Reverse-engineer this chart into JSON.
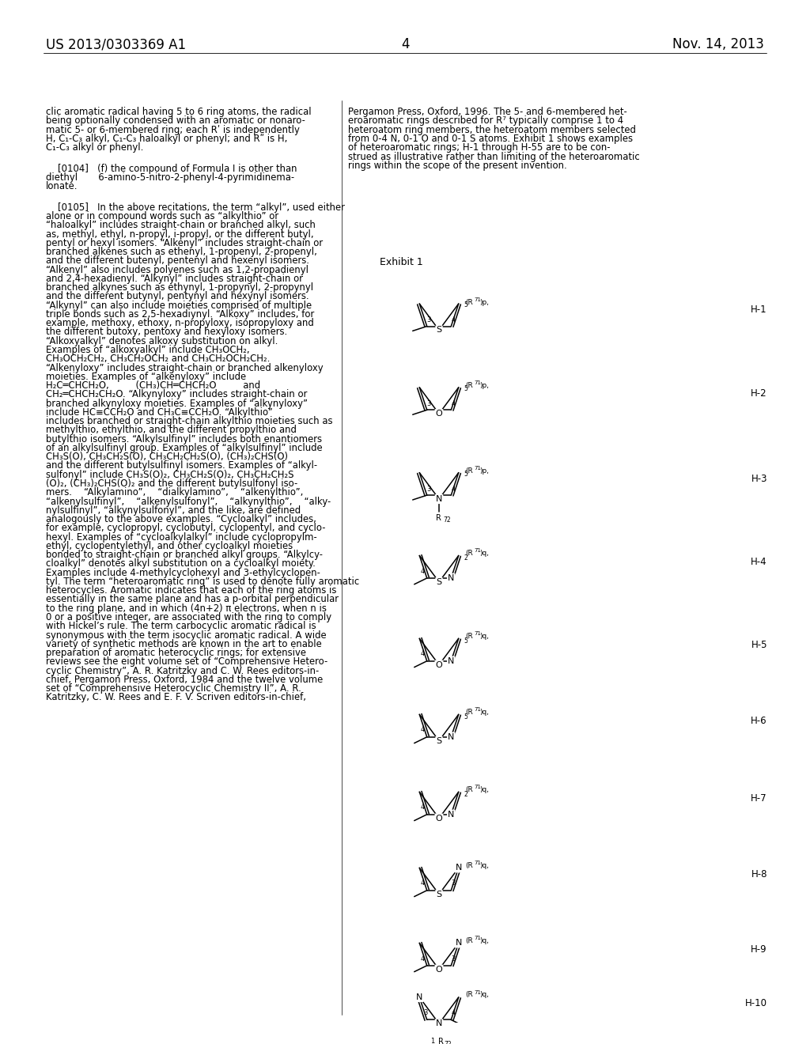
{
  "bg": "#ffffff",
  "header_left": "US 2013/0303369 A1",
  "header_right": "Nov. 14, 2013",
  "page_num": "4",
  "left_lines": [
    "clic aromatic radical having 5 to 6 ring atoms, the radical",
    "being optionally condensed with an aromatic or nonaro-",
    "matic 5- or 6-membered ring; each Rʹ is independently",
    "H, C₁-C₃ alkyl, C₁-C₃ haloalkyl or phenyl; and Rʺ is H,",
    "C₁-C₃ alkyl or phenyl.",
    "",
    "    [0104]   (f) the compound of Formula I is other than",
    "diethyl       6-amino-5-nitro-2-phenyl-4-pyrimidinema-",
    "lonate.",
    "",
    "    [0105]   In the above recitations, the term “alkyl”, used either",
    "alone or in compound words such as “alkylthio” or",
    "“haloalkyl” includes straight-chain or branched alkyl, such",
    "as, methyl, ethyl, n-propyl, i-propyl, or the different butyl,",
    "pentyl or hexyl isomers. “Alkenyl” includes straight-chain or",
    "branched alkenes such as ethenyl, 1-propenyl, 2-propenyl,",
    "and the different butenyl, pentenyl and hexenyl isomers.",
    "“Alkenyl” also includes polyenes such as 1,2-propadienyl",
    "and 2,4-hexadienyl. “Alkynyl” includes straight-chain or",
    "branched alkynes such as ethynyl, 1-propynyl, 2-propynyl",
    "and the different butynyl, pentynyl and hexynyl isomers.",
    "“Alkynyl” can also include moieties comprised of multiple",
    "triple bonds such as 2,5-hexadiynyl. “Alkoxy” includes, for",
    "example, methoxy, ethoxy, n-propyloxy, isopropyloxy and",
    "the different butoxy, pentoxy and hexyloxy isomers.",
    "“Alkoxyalkyl” denotes alkoxy substitution on alkyl.",
    "Examples of “alkoxyalkyl” include CH₃OCH₂,",
    "CH₃OCH₂CH₂, CH₃CH₂OCH₂ and CH₃CH₂OCH₂CH₂.",
    "“Alkenyloxy” includes straight-chain or branched alkenyloxy",
    "moieties. Examples of “alkenyloxy” include",
    "H₂C═CHCH₂O,         (CH₃)CH═CHCH₂O         and",
    "CH₂═CHCH₂CH₂O. “Alkynyloxy” includes straight-chain or",
    "branched alkynyloxy moieties. Examples of “alkynyloxy”",
    "include HC≡CCH₂O and CH₃C≡CCH₂O. “Alkylthio”",
    "includes branched or straight-chain alkylthio moieties such as",
    "methylthio, ethylthio, and the different propylthio and",
    "butylthio isomers. “Alkylsulfinyl” includes both enantiomers",
    "of an alkylsulfinyl group. Examples of “alkylsulfinyl” include",
    "CH₃S(O), CH₃CH₂S(O), CH₃CH₂CH₂S(O), (CH₃)₂CHS(O)",
    "and the different butylsulfinyl isomers. Examples of “alkyl-",
    "sulfonyl” include CH₃S(O)₂, CH₃CH₂S(O)₂, CH₃CH₂CH₂S",
    "(O)₂, (CH₃)₂CHS(O)₂ and the different butylsulfonyl iso-",
    "mers.    “Alkylamino”,    “dialkylamino”,    “alkenylthio”,",
    "“alkenylsulfinyl”,    “alkenylsulfonyl”,    “alkynylthio”,    “alky-",
    "nylsulfinyl”, “alkynylsulfonyl”, and the like, are defined",
    "analogously to the above examples. “Cycloalkyl” includes,",
    "for example, cyclopropyl, cyclobutyl, cyclopentyl, and cyclo-",
    "hexyl. Examples of “cycloalkylalkyl” include cyclopropylm-",
    "ethyl, cyclopentylethyl, and other cycloalkyl moieties",
    "bonded to straight-chain or branched alkyl groups. “Alkylcy-",
    "cloalkyl” denotes alkyl substitution on a cycloalkyl moiety.",
    "Examples include 4-methylcyclohexyl and 3-ethylcyclopen-",
    "tyl. The term “heteroaromatic ring” is used to denote fully aromatic",
    "heterocycles. Aromatic indicates that each of the ring atoms is",
    "essentially in the same plane and has a p-orbital perpendicular",
    "to the ring plane, and in which (4n+2) π electrons, when n is",
    "0 or a positive integer, are associated with the ring to comply",
    "with Hickel’s rule. The term carbocyclic aromatic radical is",
    "synonymous with the term isocyclic aromatic radical. A wide",
    "variety of synthetic methods are known in the art to enable",
    "preparation of aromatic heterocyclic rings; for extensive",
    "reviews see the eight volume set of “Comprehensive Hetero-",
    "cyclic Chemistry”, A. R. Katritzky and C. W. Rees editors-in-",
    "chief, Pergamon Press, Oxford, 1984 and the twelve volume",
    "set of “Comprehensive Heterocyclic Chemistry II”, A. R.",
    "Katritzky, C. W. Rees and E. F. V. Scriven editors-in-chief,"
  ],
  "right_top_lines": [
    "Pergamon Press, Oxford, 1996. The 5- and 6-membered het-",
    "eroaromatic rings described for R⁷ typically comprise 1 to 4",
    "heteroatom ring members, the heteroatom members selected",
    "from 0-4 N, 0-1 O and 0-1 S atoms. Exhibit 1 shows examples",
    "of heteroaromatic rings; H-1 through H-55 are to be con-",
    "strued as illustrative rather than limiting of the heteroaromatic",
    "rings within the scope of the present invention."
  ]
}
